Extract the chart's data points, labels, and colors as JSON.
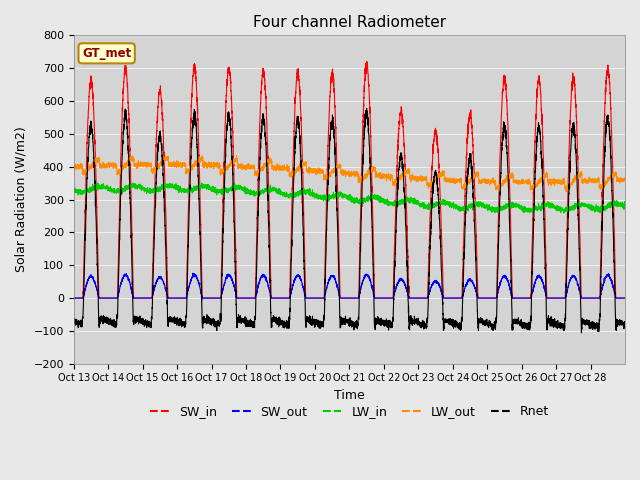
{
  "title": "Four channel Radiometer",
  "xlabel": "Time",
  "ylabel": "Solar Radiation (W/m2)",
  "ylim": [
    -200,
    800
  ],
  "background_color": "#e8e8e8",
  "plot_bg_color": "#d4d4d4",
  "x_tick_labels": [
    "Oct 13",
    "Oct 14",
    "Oct 15",
    "Oct 16",
    "Oct 17",
    "Oct 18",
    "Oct 19",
    "Oct 20",
    "Oct 21",
    "Oct 22",
    "Oct 23",
    "Oct 24",
    "Oct 25",
    "Oct 26",
    "Oct 27",
    "Oct 28"
  ],
  "legend_labels": [
    "SW_in",
    "SW_out",
    "LW_in",
    "LW_out",
    "Rnet"
  ],
  "legend_colors": [
    "#ff0000",
    "#0000ff",
    "#00cc00",
    "#ff8c00",
    "#000000"
  ],
  "annotation_text": "GT_met",
  "num_days": 16,
  "yticks": [
    -200,
    -100,
    0,
    100,
    200,
    300,
    400,
    500,
    600,
    700,
    800
  ]
}
